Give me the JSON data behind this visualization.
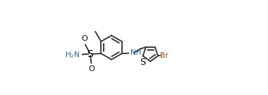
{
  "bg_color": "#ffffff",
  "bond_color": "#3a3a3a",
  "bond_lw": 1.4,
  "s_color": "#000000",
  "n_color": "#2c5f8a",
  "br_color": "#8b4513",
  "o_color": "#000000",
  "h2n_color": "#2c5f8a",
  "font_size": 8.0,
  "dbo": 0.025,
  "figsize": [
    3.8,
    1.35
  ],
  "dpi": 100,
  "xlim": [
    0.0,
    1.0
  ],
  "ylim": [
    0.05,
    0.95
  ]
}
